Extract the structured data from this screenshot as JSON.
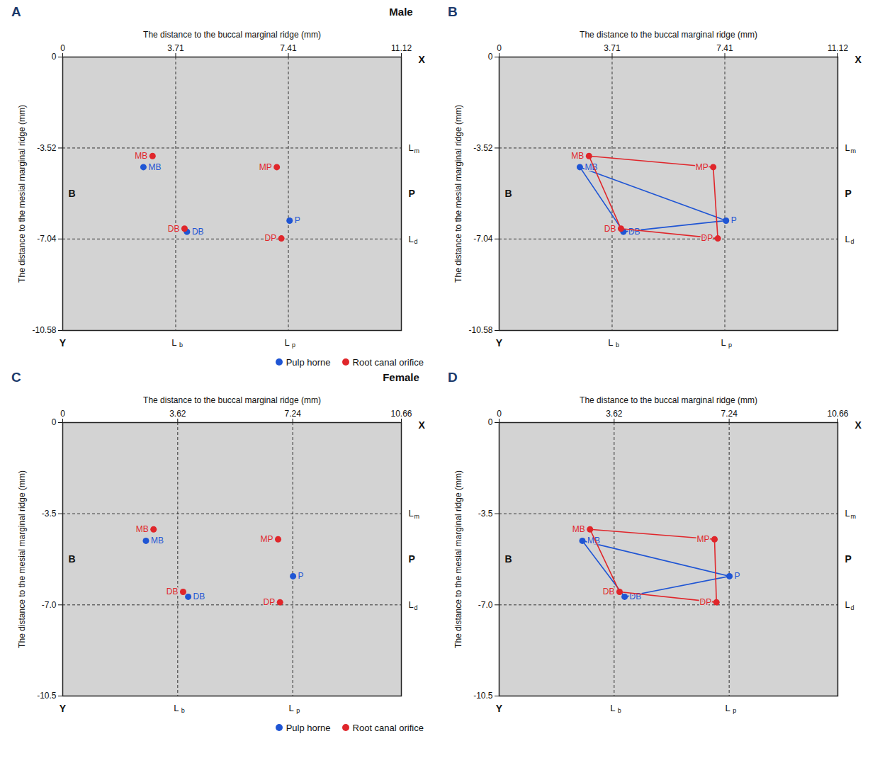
{
  "chart_data": [
    {
      "type": "scatter",
      "panel": "A",
      "group": "Male",
      "xlabel": "The distance to the buccal marginal ridge (mm)",
      "ylabel": "The distance to the mesial marginal ridge (mm)",
      "xlim": [
        0,
        11.12
      ],
      "xticks": [
        0,
        3.71,
        7.41,
        11.12
      ],
      "ylim": [
        -10.58,
        0
      ],
      "yticks": [
        0,
        -3.52,
        -7.04,
        -10.58
      ],
      "grid": true,
      "legend": "bottom-right",
      "axis_end_labels": {
        "x": "X",
        "y": "Y"
      },
      "side_labels": {
        "left": "B",
        "right": "P"
      },
      "line_labels": {
        "x": [
          [
            "L",
            "b"
          ],
          [
            "L",
            "p"
          ]
        ],
        "y": [
          [
            "L",
            "m"
          ],
          [
            "L",
            "d"
          ]
        ]
      },
      "series": [
        {
          "name": "Pulp horne",
          "color": "#1f55d4",
          "type": "scatter",
          "labels": [
            "MB",
            "P",
            "DB"
          ],
          "x": [
            2.65,
            7.45,
            4.08
          ],
          "y": [
            -4.26,
            -6.33,
            -6.76
          ]
        },
        {
          "name": "Root canal orifice",
          "color": "#e0262b",
          "type": "scatter",
          "labels": [
            "MB",
            "MP",
            "DP",
            "DB"
          ],
          "x": [
            2.95,
            7.03,
            7.18,
            4.0
          ],
          "y": [
            -3.83,
            -4.26,
            -7.02,
            -6.64
          ]
        }
      ]
    },
    {
      "type": "scatter",
      "panel": "B",
      "xlabel": "The distance to the buccal marginal ridge (mm)",
      "ylabel": "The distance to the mesial marginal ridge (mm)",
      "xlim": [
        0,
        11.12
      ],
      "xticks": [
        0,
        3.71,
        7.41,
        11.12
      ],
      "ylim": [
        -10.58,
        0
      ],
      "yticks": [
        0,
        -3.52,
        -7.04,
        -10.58
      ],
      "grid": true,
      "axis_end_labels": {
        "x": "X",
        "y": "Y"
      },
      "side_labels": {
        "left": "B",
        "right": "P"
      },
      "line_labels": {
        "x": [
          [
            "L",
            "b"
          ],
          [
            "L",
            "p"
          ]
        ],
        "y": [
          [
            "L",
            "m"
          ],
          [
            "L",
            "d"
          ]
        ]
      },
      "series": [
        {
          "color": "#1f55d4",
          "type": "polygon",
          "labels": [
            "MB",
            "P",
            "DB"
          ],
          "x": [
            2.65,
            7.45,
            4.08
          ],
          "y": [
            -4.26,
            -6.33,
            -6.76
          ]
        },
        {
          "color": "#e0262b",
          "type": "polygon",
          "labels": [
            "MB",
            "MP",
            "DP",
            "DB"
          ],
          "x": [
            2.95,
            7.03,
            7.18,
            4.0
          ],
          "y": [
            -3.83,
            -4.26,
            -7.02,
            -6.64
          ]
        }
      ]
    },
    {
      "type": "scatter",
      "panel": "C",
      "group": "Female",
      "xlabel": "The distance to the buccal marginal ridge (mm)",
      "ylabel": "The distance to the mesial marginal ridge (mm)",
      "xlim": [
        0,
        10.66
      ],
      "xticks": [
        0,
        3.62,
        7.24,
        10.66
      ],
      "ylim": [
        -10.5,
        0
      ],
      "yticks": [
        0,
        -3.5,
        {
          "value": -7,
          "label": "-7.0"
        },
        -10.5
      ],
      "grid": true,
      "legend": "bottom-right",
      "axis_end_labels": {
        "x": "X",
        "y": "Y"
      },
      "side_labels": {
        "left": "B",
        "right": "P"
      },
      "line_labels": {
        "x": [
          [
            "L",
            "b"
          ],
          [
            "L",
            "p"
          ]
        ],
        "y": [
          [
            "L",
            "m"
          ],
          [
            "L",
            "d"
          ]
        ]
      },
      "series": [
        {
          "name": "Pulp horne",
          "color": "#1f55d4",
          "type": "scatter",
          "labels": [
            "MB",
            "P",
            "DB"
          ],
          "x": [
            2.62,
            7.25,
            3.95
          ],
          "y": [
            -4.54,
            -5.9,
            -6.69
          ]
        },
        {
          "name": "Root canal orifice",
          "color": "#e0262b",
          "type": "scatter",
          "labels": [
            "MB",
            "MP",
            "DP",
            "DB"
          ],
          "x": [
            2.86,
            6.78,
            6.84,
            3.79
          ],
          "y": [
            -4.1,
            -4.48,
            -6.9,
            -6.5
          ]
        }
      ]
    },
    {
      "type": "scatter",
      "panel": "D",
      "xlabel": "The distance to the buccal marginal ridge (mm)",
      "ylabel": "The distance to the mesial marginal ridge (mm)",
      "xlim": [
        0,
        10.66
      ],
      "xticks": [
        0,
        3.62,
        7.24,
        10.66
      ],
      "ylim": [
        -10.5,
        0
      ],
      "yticks": [
        0,
        -3.5,
        {
          "value": -7,
          "label": "-7.0"
        },
        -10.5
      ],
      "grid": true,
      "axis_end_labels": {
        "x": "X",
        "y": "Y"
      },
      "side_labels": {
        "left": "B",
        "right": "P"
      },
      "line_labels": {
        "x": [
          [
            "L",
            "b"
          ],
          [
            "L",
            "p"
          ]
        ],
        "y": [
          [
            "L",
            "m"
          ],
          [
            "L",
            "d"
          ]
        ]
      },
      "series": [
        {
          "color": "#1f55d4",
          "type": "polygon",
          "labels": [
            "MB",
            "P",
            "DB"
          ],
          "x": [
            2.62,
            7.25,
            3.95
          ],
          "y": [
            -4.54,
            -5.9,
            -6.69
          ]
        },
        {
          "color": "#e0262b",
          "type": "polygon",
          "labels": [
            "MB",
            "MP",
            "DP",
            "DB"
          ],
          "x": [
            2.86,
            6.78,
            6.84,
            3.79
          ],
          "y": [
            -4.1,
            -4.48,
            -6.9,
            -6.5
          ]
        }
      ]
    }
  ]
}
